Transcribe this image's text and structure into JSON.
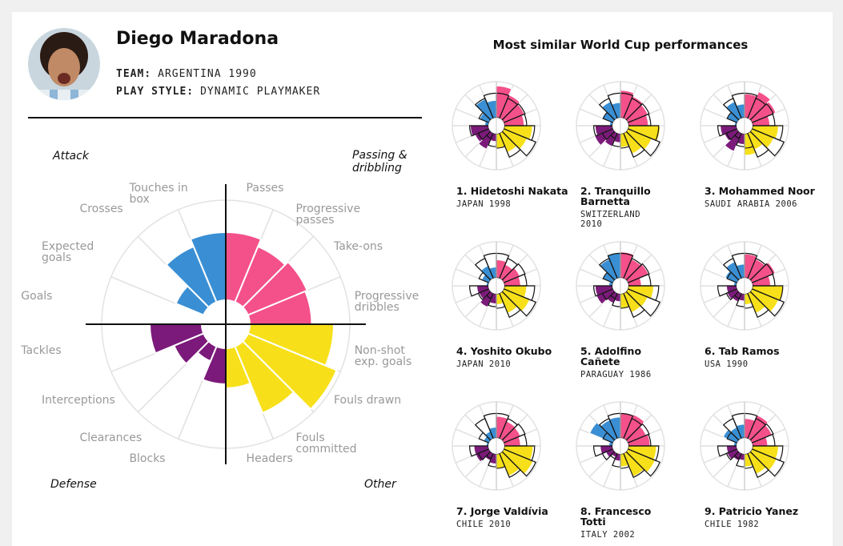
{
  "player": {
    "name": "Diego Maradona",
    "team_label": "TEAM:",
    "team": "ARGENTINA 1990",
    "style_label": "PLAY STYLE:",
    "style": "DYNAMIC PLAYMAKER"
  },
  "similar_heading": "Most similar World Cup performances",
  "chart_data": [
    {
      "type": "polar-bar",
      "categories": [
        "Passes",
        "Progressive passes",
        "Take-ons",
        "Progressive dribbles",
        "Non-shot exp. goals",
        "Fouls drawn",
        "Fouls committed",
        "Headers",
        "Blocks",
        "Clearances",
        "Interceptions",
        "Tackles",
        "Goals",
        "Expected goals",
        "Crosses",
        "Touches in box"
      ],
      "values": [
        68,
        60,
        64,
        62,
        84,
        96,
        72,
        40,
        36,
        16,
        32,
        52,
        0,
        30,
        60,
        68
      ],
      "groups": [
        {
          "name": "Passing & dribbling",
          "color": "#f4508a"
        },
        {
          "name": "Other",
          "color": "#f7e01a"
        },
        {
          "name": "Defense",
          "color": "#7b1a7a"
        },
        {
          "name": "Attack",
          "color": "#3a8fd4"
        }
      ],
      "ylim": [
        0,
        100
      ]
    },
    {
      "type": "polar-bar",
      "title": "1. Hidetoshi Nakata",
      "subtitle": "JAPAN 1998",
      "values": [
        88,
        70,
        62,
        55,
        78,
        70,
        58,
        40,
        22,
        48,
        42,
        50,
        10,
        28,
        58,
        48
      ]
    },
    {
      "type": "polar-bar",
      "title": "2. Tranquillo Barnetta",
      "subtitle": "SWITZERLAND 2010",
      "values": [
        76,
        66,
        60,
        55,
        88,
        72,
        62,
        38,
        25,
        40,
        55,
        48,
        8,
        32,
        50,
        42
      ]
    },
    {
      "type": "polar-bar",
      "title": "3. Mohammed Noor",
      "subtitle": "SAUDI ARABIA 2006",
      "values": [
        66,
        80,
        72,
        48,
        72,
        66,
        50,
        60,
        30,
        55,
        38,
        45,
        6,
        30,
        50,
        38
      ]
    },
    {
      "type": "polar-bar",
      "title": "4. Yoshito Okubo",
      "subtitle": "JAPAN 2010",
      "values": [
        50,
        42,
        48,
        45,
        62,
        78,
        60,
        30,
        28,
        42,
        30,
        32,
        6,
        22,
        38,
        30
      ]
    },
    {
      "type": "polar-bar",
      "title": "5. Adolfino Cañete",
      "subtitle": "PARAGUAY 1986",
      "values": [
        72,
        58,
        62,
        36,
        70,
        60,
        58,
        40,
        22,
        30,
        50,
        48,
        10,
        30,
        58,
        70
      ]
    },
    {
      "type": "polar-bar",
      "title": "6. Tab Ramos",
      "subtitle": "USA 1990",
      "values": [
        66,
        58,
        70,
        50,
        86,
        80,
        60,
        30,
        20,
        26,
        30,
        28,
        8,
        36,
        50,
        38
      ]
    },
    {
      "type": "polar-bar",
      "title": "7. Jorge Valdívia",
      "subtitle": "CHILE 2010",
      "values": [
        60,
        52,
        50,
        45,
        80,
        88,
        68,
        42,
        28,
        22,
        40,
        40,
        6,
        16,
        22,
        30
      ]
    },
    {
      "type": "polar-bar",
      "title": "8. Francesco Totti",
      "subtitle": "ITALY 2002",
      "values": [
        70,
        72,
        55,
        60,
        78,
        82,
        70,
        36,
        20,
        12,
        22,
        34,
        10,
        70,
        56,
        58
      ]
    },
    {
      "type": "polar-bar",
      "title": "9. Patricio Yanez",
      "subtitle": "CHILE 1982",
      "values": [
        54,
        70,
        60,
        42,
        72,
        74,
        62,
        36,
        18,
        22,
        30,
        28,
        8,
        42,
        34,
        38
      ]
    }
  ]
}
